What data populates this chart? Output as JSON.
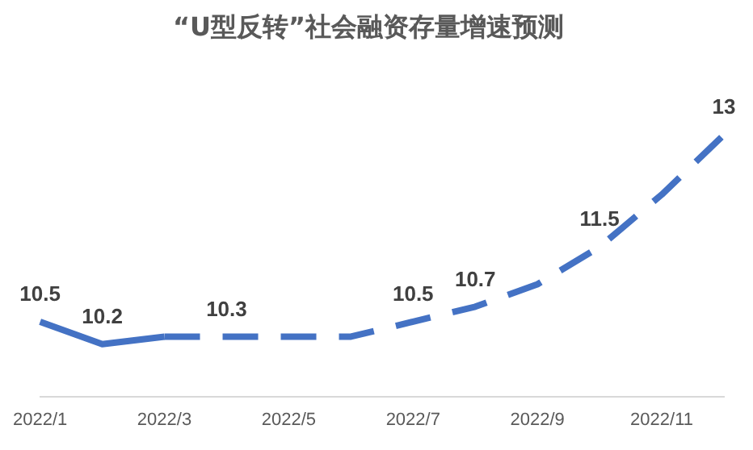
{
  "chart_data": {
    "type": "line",
    "title": "“U型反转”社会融资存量增速预测",
    "categories": [
      "2022/1",
      null,
      "2022/3",
      null,
      "2022/5",
      null,
      "2022/7",
      null,
      "2022/9",
      null,
      "2022/11",
      null
    ],
    "series": [
      {
        "color": "#4472c4",
        "line_style": "solid",
        "values": [
          10.5,
          10.2,
          10.3,
          null,
          null,
          null,
          null,
          null,
          null,
          null,
          null,
          null
        ],
        "value_labels": [
          "10.5",
          "10.2",
          null,
          null,
          null,
          null,
          null,
          null,
          null,
          null,
          null,
          null
        ]
      },
      {
        "color": "#4472c4",
        "line_style": "dashed",
        "values": [
          null,
          null,
          10.3,
          10.3,
          10.3,
          10.3,
          10.5,
          10.7,
          11.0,
          11.5,
          12.2,
          13
        ],
        "value_labels": [
          null,
          null,
          null,
          "10.3",
          null,
          null,
          "10.5",
          "10.7",
          null,
          "11.5",
          null,
          "13"
        ]
      }
    ],
    "tick_labels": "x",
    "grid": false,
    "legend": false,
    "marker": "none"
  }
}
